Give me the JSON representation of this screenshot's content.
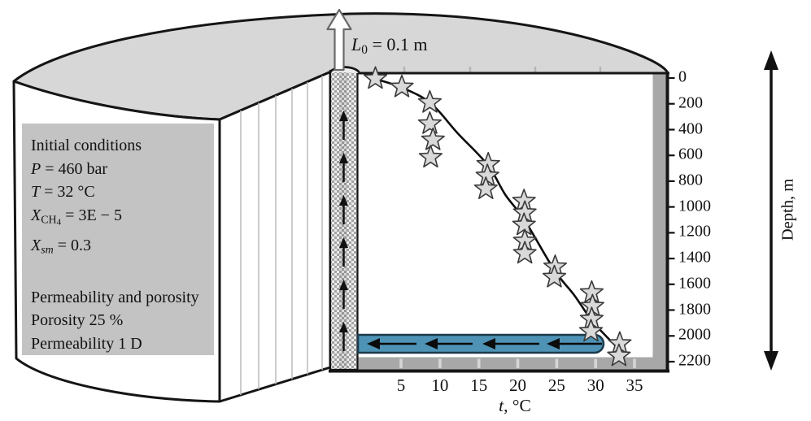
{
  "labels": {
    "l0_label": [
      {
        "t": "L",
        "s": "i"
      },
      {
        "t": "0",
        "s": "sub"
      },
      {
        "t": " = 0.1 m",
        "s": "n"
      }
    ]
  },
  "info_box": {
    "lines": [
      {
        "segments": [
          {
            "t": "Initial conditions",
            "s": "n"
          }
        ]
      },
      {
        "segments": [
          {
            "t": "P",
            "s": "i"
          },
          {
            "t": " = 460 bar",
            "s": "n"
          }
        ]
      },
      {
        "segments": [
          {
            "t": "T",
            "s": "i"
          },
          {
            "t": " = 32 °C",
            "s": "n"
          }
        ]
      },
      {
        "segments": [
          {
            "t": "X",
            "s": "i"
          },
          {
            "t": "CH",
            "s": "sub"
          },
          {
            "t": "4",
            "s": "subsub"
          },
          {
            "t": " = 3E − 5",
            "s": "n"
          }
        ]
      },
      {
        "segments": [
          {
            "t": "X",
            "s": "i"
          },
          {
            "t": "sm",
            "s": "isub"
          },
          {
            "t": " = 0.3",
            "s": "n"
          }
        ]
      },
      {
        "segments": []
      },
      {
        "segments": [
          {
            "t": "Permeability and porosity",
            "s": "n"
          }
        ]
      },
      {
        "segments": [
          {
            "t": "Porosity 25 %",
            "s": "n"
          }
        ]
      },
      {
        "segments": [
          {
            "t": "Permeability 1 D",
            "s": "n"
          }
        ]
      }
    ]
  },
  "chart_data": {
    "type": "scatter",
    "xlabel_plain": "t, °C",
    "xlabel_segments": [
      {
        "t": "t",
        "s": "i"
      },
      {
        "t": ", °C",
        "s": "n"
      }
    ],
    "ylabel": "Depth, m",
    "x_ticks": [
      5,
      10,
      15,
      20,
      25,
      30,
      35
    ],
    "y_ticks": [
      0,
      200,
      400,
      600,
      800,
      1000,
      1200,
      1400,
      1600,
      1800,
      2000,
      2200
    ],
    "x_range": [
      0,
      37
    ],
    "y_range": [
      0,
      2200
    ],
    "y_axis_inverted_depth": true,
    "grid": false,
    "legend": "none",
    "series": [
      {
        "name": "temperature-depth profile curve",
        "type": "line",
        "points": [
          [
            1.3,
            0
          ],
          [
            5.0,
            72
          ],
          [
            8.8,
            195
          ],
          [
            12.3,
            430
          ],
          [
            16.1,
            672
          ],
          [
            18.4,
            905
          ],
          [
            20.9,
            1105
          ],
          [
            24.7,
            1490
          ],
          [
            27.2,
            1680
          ],
          [
            29.5,
            1880
          ],
          [
            31.4,
            2005
          ],
          [
            33.3,
            2120
          ]
        ]
      },
      {
        "name": "temperature markers (stars)",
        "type": "scatter",
        "marker": "star",
        "points": [
          [
            1.7,
            5
          ],
          [
            5.1,
            70
          ],
          [
            8.7,
            190
          ],
          [
            8.7,
            355
          ],
          [
            9.1,
            480
          ],
          [
            8.8,
            615
          ],
          [
            16.2,
            670
          ],
          [
            16.1,
            760
          ],
          [
            15.9,
            860
          ],
          [
            20.8,
            955
          ],
          [
            20.9,
            1045
          ],
          [
            20.8,
            1140
          ],
          [
            20.9,
            1265
          ],
          [
            20.9,
            1360
          ],
          [
            24.8,
            1465
          ],
          [
            24.7,
            1545
          ],
          [
            29.5,
            1665
          ],
          [
            29.6,
            1770
          ],
          [
            29.5,
            1870
          ],
          [
            29.4,
            1965
          ],
          [
            33.1,
            2060
          ],
          [
            33.0,
            2155
          ]
        ]
      }
    ]
  },
  "diagram": {
    "upflow_arrow_count": 6,
    "channel_arrow_count": 4,
    "colors": {
      "cylinder_top_gray": "#d7d7d7",
      "info_box_gray": "#c3c3c3",
      "plot_band_gray": "#a8a8a8",
      "channel_blue": "#4e93b6",
      "channel_outline": "#1c3a4a",
      "star_fill": "#d9d9d9",
      "star_outline": "#3a3a3a"
    }
  }
}
